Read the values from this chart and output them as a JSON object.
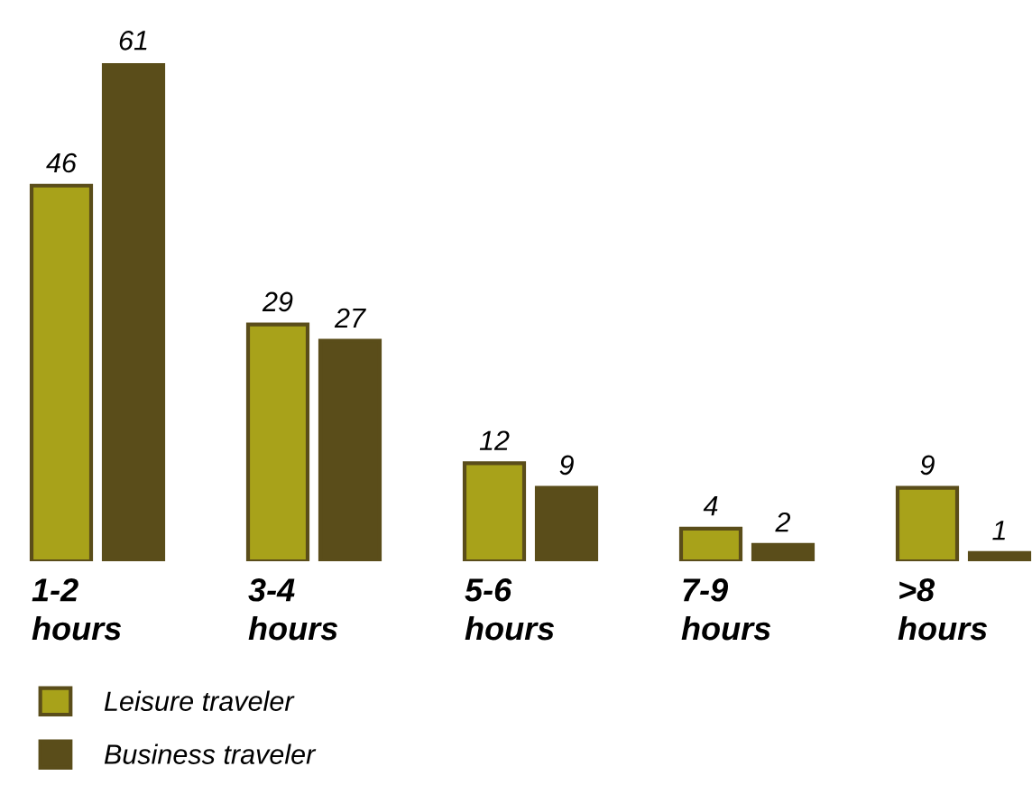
{
  "chart_data": {
    "type": "bar",
    "categories": [
      "1-2\nhours",
      "3-4\nhours",
      "5-6\nhours",
      "7-9\nhours",
      ">8\nhours"
    ],
    "series": [
      {
        "name": "Leisure traveler",
        "color": "#a8a21a",
        "values": [
          46,
          29,
          12,
          4,
          9
        ]
      },
      {
        "name": "Business traveler",
        "color": "#5a4d1a",
        "values": [
          61,
          27,
          9,
          2,
          1
        ]
      }
    ],
    "data_labels": true,
    "legend": "bottom left"
  }
}
